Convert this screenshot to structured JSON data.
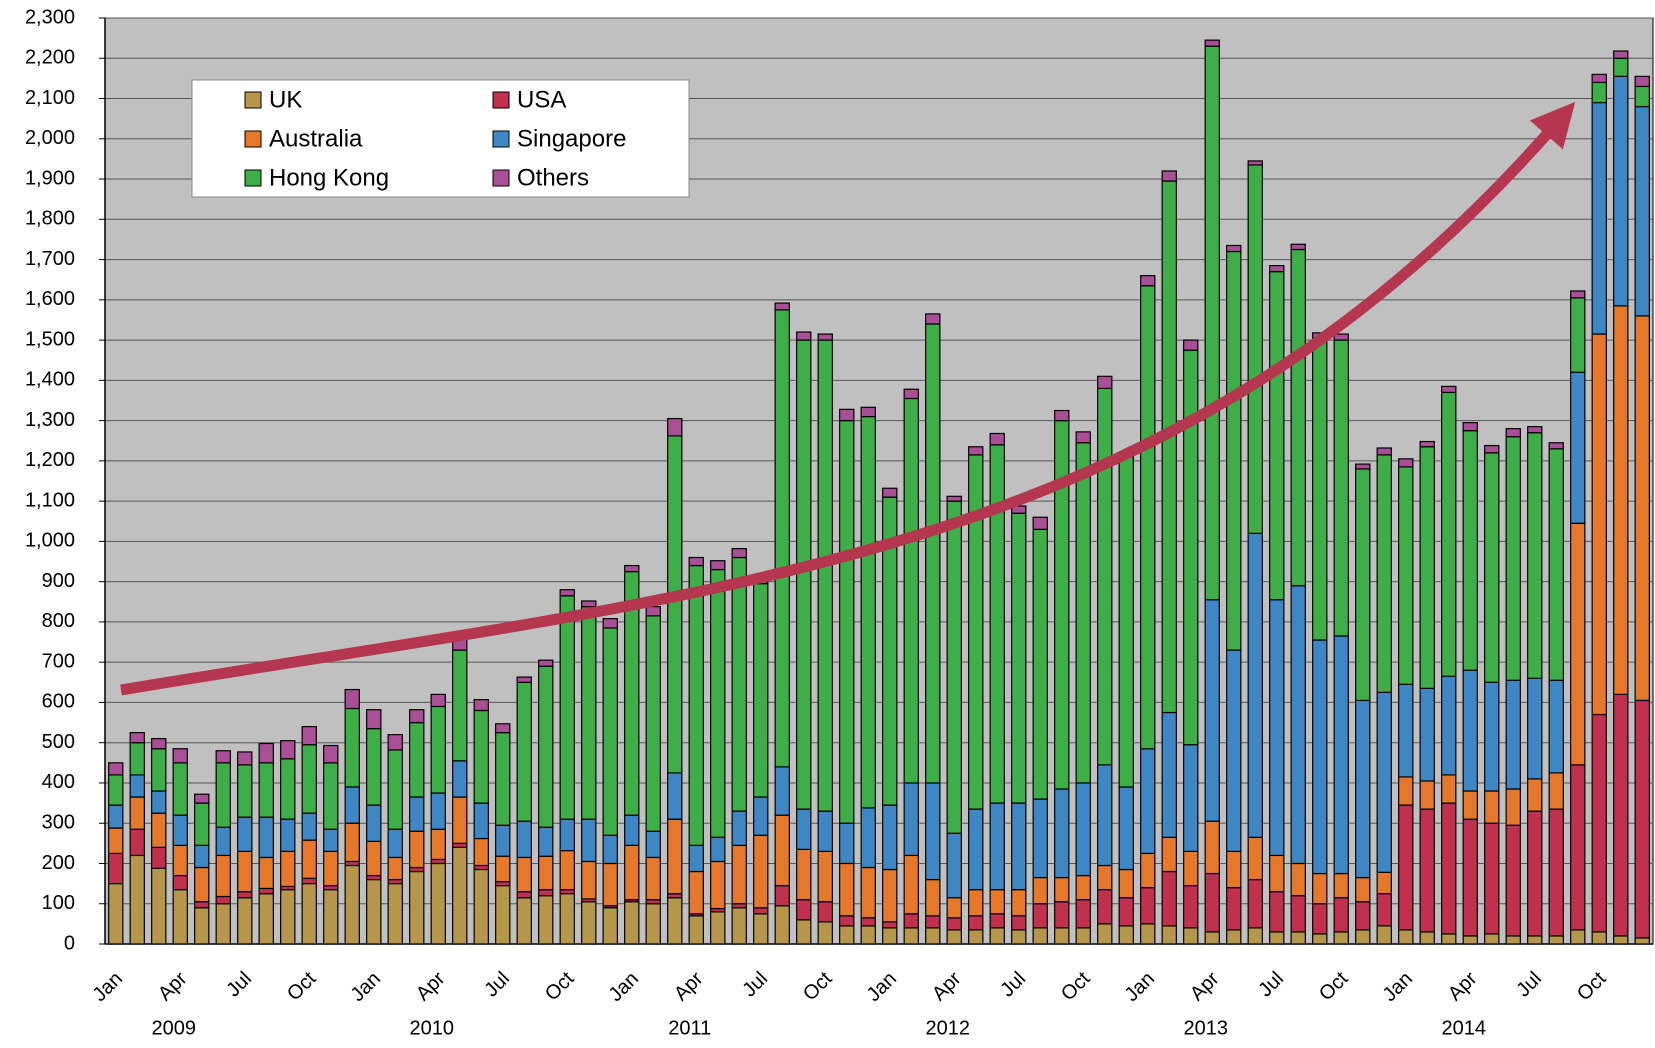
{
  "chart_data": {
    "type": "stacked_bar",
    "categories": [
      "Jan",
      null,
      null,
      "Apr",
      null,
      null,
      "Jul",
      null,
      null,
      "Oct",
      null,
      null,
      "Jan",
      null,
      null,
      "Apr",
      null,
      null,
      "Jul",
      null,
      null,
      "Oct",
      null,
      null,
      "Jan",
      null,
      null,
      "Apr",
      null,
      null,
      "Jul",
      null,
      null,
      "Oct",
      null,
      null,
      "Jan",
      null,
      null,
      "Apr",
      null,
      null,
      "Jul",
      null,
      null,
      "Oct",
      null,
      null,
      "Jan",
      null,
      null,
      "Apr",
      null,
      null,
      "Jul",
      null,
      null,
      "Oct",
      null,
      null,
      "Jan",
      null,
      null,
      "Apr",
      null,
      null,
      "Jul",
      null,
      null,
      "Oct",
      null,
      null
    ],
    "years": [
      "2009",
      "2010",
      "2011",
      "2012",
      "2013",
      "2014"
    ],
    "series": [
      {
        "name": "UK",
        "color": "#b5964a",
        "values": [
          150,
          220,
          188,
          135,
          90,
          100,
          115,
          125,
          135,
          150,
          135,
          195,
          160,
          150,
          180,
          200,
          240,
          185,
          145,
          115,
          120,
          125,
          105,
          90,
          105,
          100,
          115,
          70,
          80,
          90,
          75,
          95,
          60,
          55,
          45,
          45,
          40,
          40,
          40,
          35,
          35,
          40,
          35,
          40,
          40,
          40,
          50,
          45,
          50,
          45,
          40,
          30,
          35,
          40,
          30,
          30,
          25,
          30,
          35,
          45,
          35,
          30,
          25,
          20,
          25,
          20,
          20,
          20,
          35,
          30,
          20,
          15
        ]
      },
      {
        "name": "USA",
        "color": "#c1304c",
        "values": [
          75,
          65,
          52,
          35,
          15,
          18,
          15,
          13,
          8,
          13,
          10,
          10,
          10,
          10,
          10,
          10,
          10,
          10,
          10,
          15,
          15,
          10,
          7,
          5,
          5,
          10,
          10,
          5,
          8,
          10,
          15,
          50,
          50,
          50,
          25,
          20,
          15,
          35,
          30,
          30,
          35,
          35,
          35,
          60,
          65,
          70,
          85,
          70,
          90,
          135,
          105,
          145,
          105,
          120,
          100,
          90,
          75,
          85,
          70,
          80,
          310,
          305,
          325,
          290,
          275,
          275,
          310,
          315,
          410,
          540,
          600,
          590
        ]
      },
      {
        "name": "Australia",
        "color": "#e5782a",
        "values": [
          63,
          80,
          85,
          75,
          85,
          102,
          100,
          77,
          87,
          95,
          85,
          95,
          85,
          55,
          90,
          75,
          115,
          67,
          63,
          85,
          83,
          97,
          93,
          105,
          135,
          105,
          185,
          105,
          117,
          145,
          180,
          175,
          125,
          125,
          130,
          125,
          130,
          145,
          90,
          50,
          65,
          60,
          65,
          65,
          60,
          60,
          60,
          70,
          85,
          85,
          85,
          130,
          90,
          105,
          90,
          80,
          75,
          60,
          60,
          53,
          70,
          70,
          70,
          70,
          80,
          90,
          80,
          90,
          600,
          945,
          965,
          955
        ]
      },
      {
        "name": "Singapore",
        "color": "#3f86c4",
        "values": [
          57,
          55,
          55,
          75,
          55,
          70,
          85,
          100,
          80,
          67,
          55,
          90,
          90,
          70,
          85,
          90,
          90,
          88,
          77,
          90,
          72,
          78,
          105,
          70,
          75,
          65,
          115,
          65,
          60,
          85,
          95,
          120,
          100,
          100,
          100,
          148,
          160,
          180,
          240,
          160,
          200,
          215,
          215,
          195,
          220,
          230,
          250,
          205,
          260,
          310,
          265,
          550,
          500,
          755,
          635,
          690,
          580,
          590,
          440,
          447,
          230,
          230,
          245,
          300,
          270,
          270,
          250,
          230,
          375,
          575,
          570,
          520
        ]
      },
      {
        "name": "Hong Kong",
        "color": "#3eae48",
        "values": [
          75,
          80,
          105,
          130,
          105,
          160,
          130,
          135,
          150,
          170,
          165,
          195,
          190,
          197,
          185,
          215,
          275,
          230,
          230,
          345,
          400,
          555,
          528,
          515,
          605,
          535,
          837,
          695,
          665,
          630,
          530,
          1135,
          1165,
          1170,
          1000,
          972,
          765,
          955,
          1140,
          825,
          880,
          890,
          720,
          670,
          915,
          845,
          935,
          820,
          1150,
          1320,
          980,
          1375,
          990,
          915,
          815,
          835,
          750,
          735,
          575,
          590,
          540,
          600,
          705,
          595,
          570,
          605,
          610,
          575,
          185,
          50,
          45,
          50
        ]
      },
      {
        "name": "Others",
        "color": "#a84f95",
        "values": [
          30,
          25,
          25,
          35,
          22,
          30,
          32,
          48,
          45,
          45,
          43,
          47,
          47,
          38,
          32,
          30,
          38,
          27,
          22,
          13,
          15,
          15,
          14,
          23,
          15,
          23,
          43,
          20,
          22,
          22,
          5,
          17,
          20,
          15,
          28,
          23,
          22,
          23,
          25,
          12,
          20,
          28,
          18,
          30,
          25,
          27,
          30,
          5,
          25,
          25,
          25,
          15,
          15,
          10,
          15,
          13,
          13,
          15,
          12,
          17,
          20,
          13,
          15,
          20,
          18,
          20,
          15,
          15,
          17,
          20,
          18,
          25
        ]
      }
    ],
    "ylim": [
      0,
      2300
    ],
    "yticks": [
      0,
      100,
      200,
      300,
      400,
      500,
      600,
      700,
      800,
      900,
      {
        "value": 1000,
        "label": "1,000"
      },
      {
        "value": 1100,
        "label": "1,100"
      },
      {
        "value": 1200,
        "label": "1,200"
      },
      {
        "value": 1300,
        "label": "1,300"
      },
      {
        "value": 1400,
        "label": "1,400"
      },
      {
        "value": 1500,
        "label": "1,500"
      },
      {
        "value": 1600,
        "label": "1,600"
      },
      {
        "value": 1700,
        "label": "1,700"
      },
      {
        "value": 1800,
        "label": "1,800"
      },
      {
        "value": 1900,
        "label": "1,900"
      },
      {
        "value": 2000,
        "label": "2,000"
      },
      {
        "value": 2100,
        "label": "2,100"
      },
      {
        "value": 2200,
        "label": "2,200"
      },
      {
        "value": 2300,
        "label": "2,300"
      }
    ],
    "grid": true,
    "legend": "upper left",
    "background": "#c0c0c0"
  }
}
